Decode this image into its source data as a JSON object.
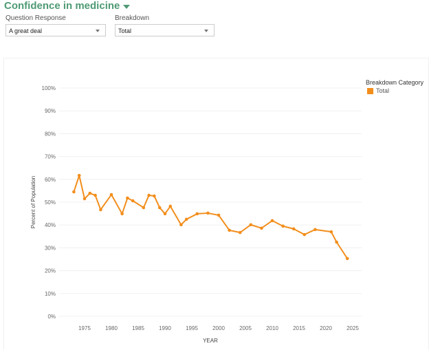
{
  "title": "Confidence in medicine",
  "filters": [
    {
      "label": "Question Response",
      "value": "A great deal"
    },
    {
      "label": "Breakdown",
      "value": "Total"
    }
  ],
  "legend": {
    "title": "Breakdown Category",
    "items": [
      {
        "label": "Total",
        "color": "#f28e1c"
      }
    ]
  },
  "chart_data": {
    "type": "line",
    "xlabel": "YEAR",
    "ylabel": "Percent of Population",
    "xlim": [
      1970,
      2027
    ],
    "ylim": [
      0,
      100
    ],
    "x_ticks": [
      "1975",
      "1980",
      "1985",
      "1990",
      "1995",
      "2000",
      "2005",
      "2010",
      "2015",
      "2020",
      "2025"
    ],
    "y_ticks": [
      "0%",
      "10%",
      "20%",
      "30%",
      "40%",
      "50%",
      "60%",
      "70%",
      "80%",
      "90%",
      "100%"
    ],
    "grid": true,
    "series": [
      {
        "name": "Total",
        "color": "#f28e1c",
        "x": [
          1973,
          1974,
          1975,
          1976,
          1977,
          1978,
          1980,
          1982,
          1983,
          1984,
          1986,
          1987,
          1988,
          1989,
          1990,
          1991,
          1993,
          1994,
          1996,
          1998,
          2000,
          2002,
          2004,
          2006,
          2008,
          2010,
          2012,
          2014,
          2016,
          2018,
          2021,
          2022,
          2024
        ],
        "y": [
          54.5,
          61.7,
          51.5,
          53.9,
          53,
          46.7,
          53.3,
          44.9,
          51.8,
          50.6,
          47.6,
          53,
          52.7,
          47.6,
          44.9,
          48.2,
          40.1,
          42.5,
          44.9,
          45.2,
          44.3,
          37.7,
          36.7,
          40.1,
          38.6,
          41.9,
          39.5,
          38.3,
          35.8,
          38,
          37,
          32.5,
          25.3
        ]
      }
    ]
  }
}
